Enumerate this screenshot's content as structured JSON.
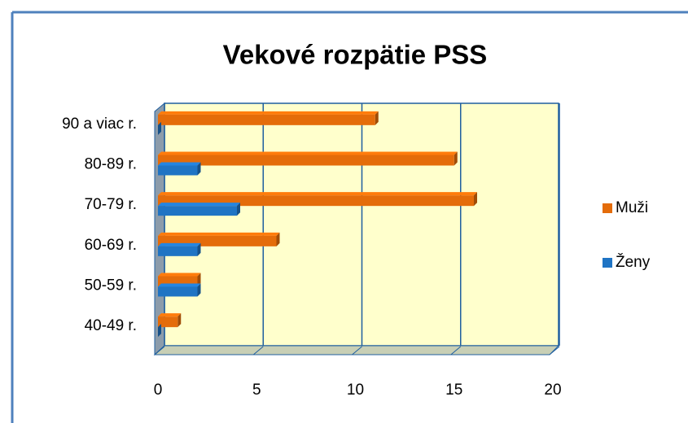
{
  "chart_data": {
    "type": "bar",
    "orientation": "horizontal",
    "title": "Vekové rozpätie PSS",
    "categories": [
      "40-49 r.",
      "50-59 r.",
      "60-69 r.",
      "70-79 r.",
      "80-89 r.",
      "90 a viac r."
    ],
    "series": [
      {
        "name": "Muži",
        "color": "#e46c0a",
        "values": [
          1,
          2,
          6,
          16,
          15,
          11
        ]
      },
      {
        "name": "Ženy",
        "color": "#1f74c4",
        "values": [
          0,
          2,
          2,
          4,
          2,
          0
        ]
      }
    ],
    "xlim": [
      0,
      20
    ],
    "xticks": [
      0,
      5,
      10,
      15,
      20
    ],
    "grid": true,
    "legend": "right"
  }
}
